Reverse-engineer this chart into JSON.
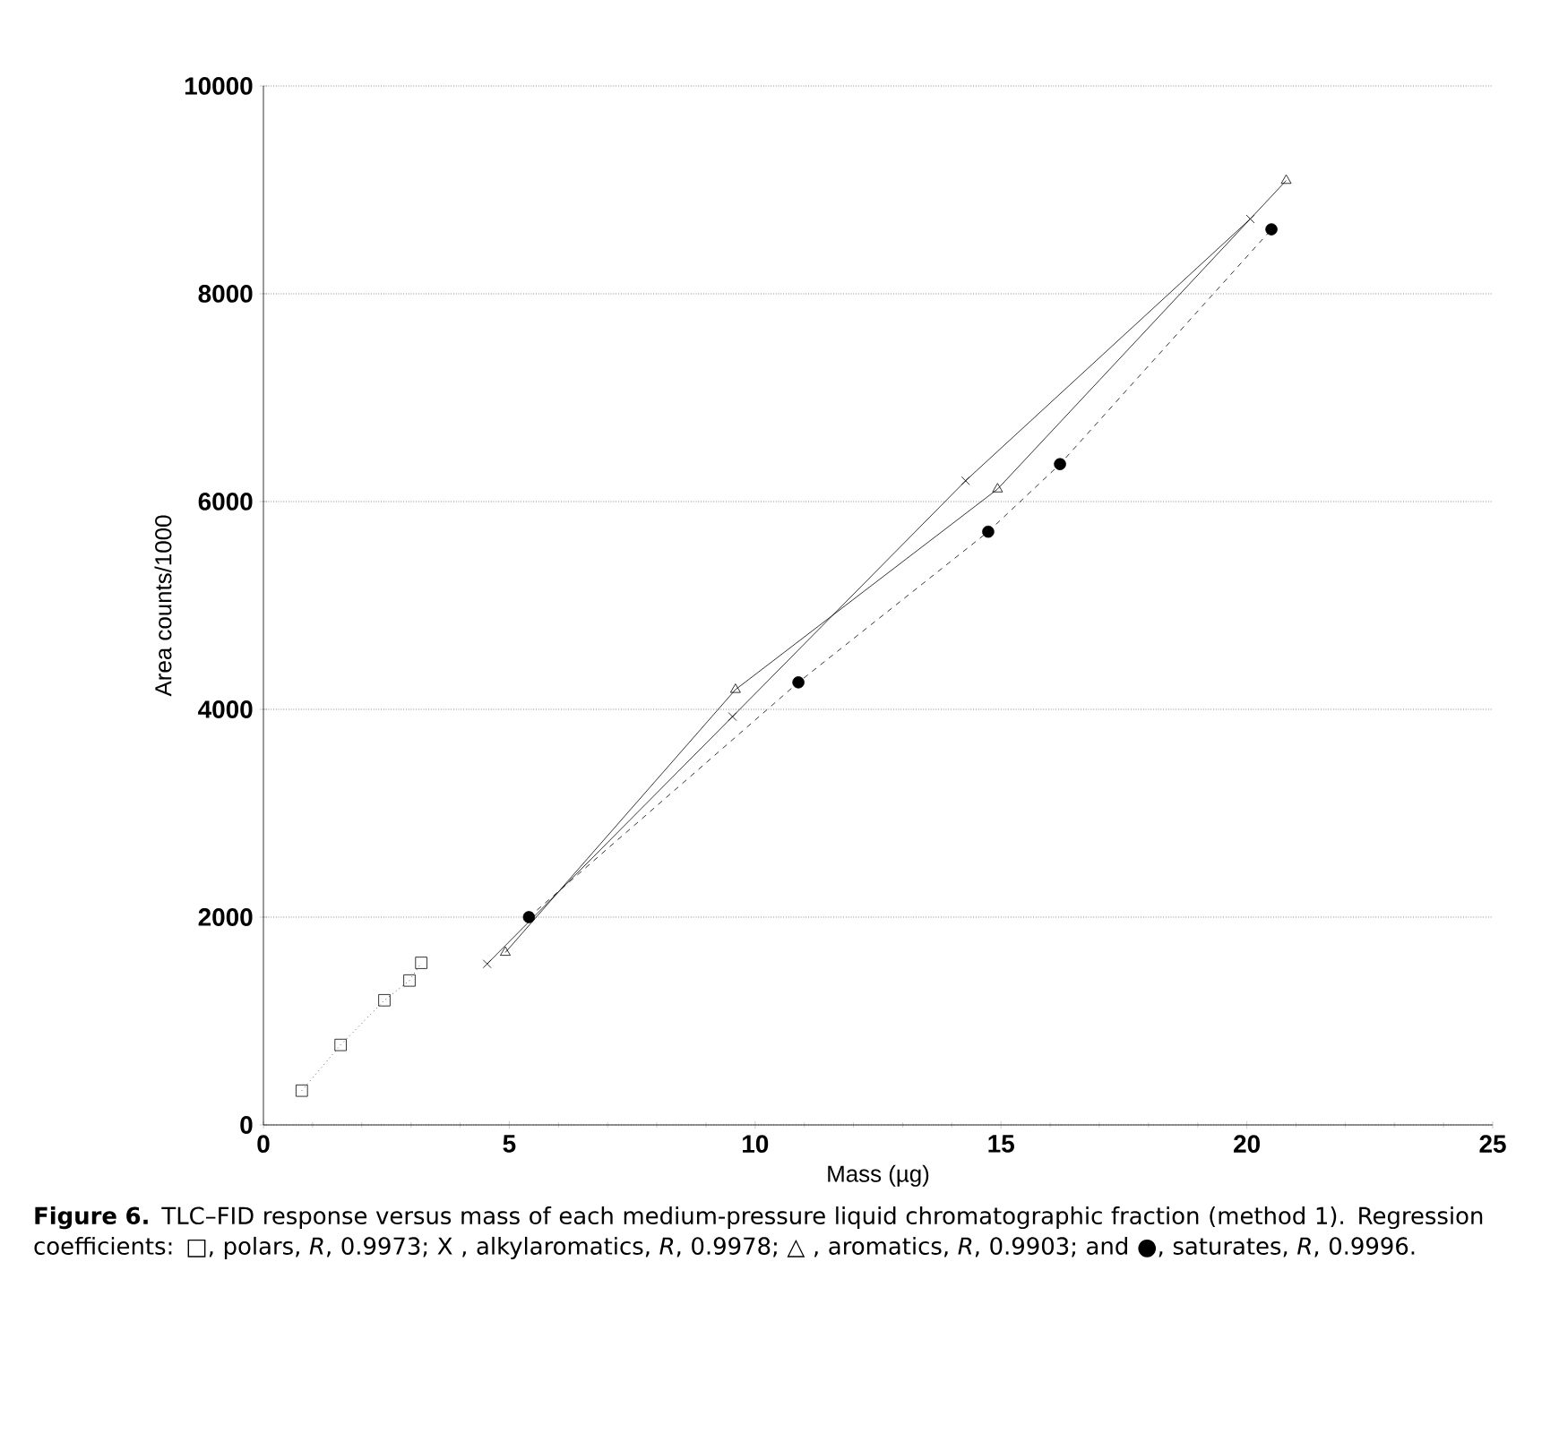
{
  "chart_data": {
    "type": "line",
    "xlabel": "Mass (µg)",
    "ylabel": "Area counts/1000",
    "xlim": [
      0,
      25
    ],
    "xticks": [
      0,
      5,
      10,
      15,
      20,
      25
    ],
    "ylim": [
      0,
      10000
    ],
    "yticks": [
      0,
      2000,
      4000,
      6000,
      8000,
      10000
    ],
    "grid": "y",
    "series": [
      {
        "color": "#000000",
        "marker": "square",
        "line_style": "dotted",
        "x": [
          0.78,
          1.57,
          2.46,
          2.97,
          3.21
        ],
        "values": [
          330,
          770,
          1200,
          1390,
          1560
        ]
      },
      {
        "color": "#000000",
        "marker": "cross",
        "line_style": "solid",
        "x": [
          4.55,
          9.54,
          14.28,
          20.07
        ],
        "values": [
          1550,
          3930,
          6200,
          8720
        ]
      },
      {
        "color": "#000000",
        "marker": "triangle",
        "line_style": "solid",
        "x": [
          4.92,
          9.6,
          14.93,
          20.8
        ],
        "values": [
          1660,
          4190,
          6120,
          9090
        ]
      },
      {
        "color": "#000000",
        "marker": "circle",
        "line_style": "dashed",
        "x": [
          5.4,
          10.88,
          14.74,
          16.2,
          20.5
        ],
        "values": [
          2000,
          4260,
          5710,
          6360,
          8620
        ]
      }
    ],
    "annotations": [
      "**Figure 6.** TLC–FID response versus mass of each medium-pressure liquid chromatographic fraction (method 1). Regression coefficients: □, polars, *R*, 0.9973; Ⅹ , alkylaromatics, *R*, 0.9978; △ , aromatics, *R*, 0.9903; and ●, saturates, *R*, 0.9996."
    ]
  }
}
